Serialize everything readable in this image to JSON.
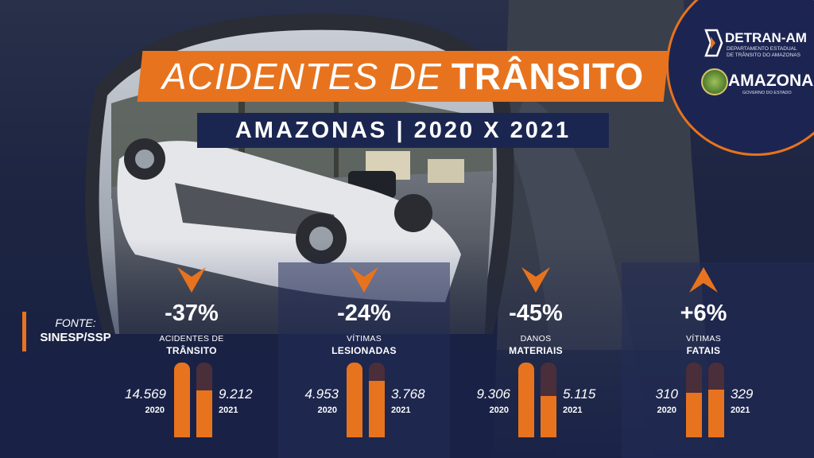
{
  "title": {
    "light": "ACIDENTES DE",
    "bold": "TRÂNSITO"
  },
  "subtitle": "AMAZONAS | 2020 X 2021",
  "logos": {
    "detran_name": "DETRAN-AM",
    "detran_desc_line1": "DEPARTAMENTO ESTADUAL",
    "detran_desc_line2": "DE TRÂNSITO DO AMAZONAS",
    "gov_name": "AMAZONAS",
    "gov_sub": "GOVERNO DO ESTADO"
  },
  "source": {
    "label": "FONTE:",
    "value": "SINESP/SSP"
  },
  "colors": {
    "accent": "#e8731e",
    "navy": "#1b2650",
    "track": "#4a2e3a"
  },
  "stats": [
    {
      "direction": "down",
      "percent": "-37%",
      "label_line1": "ACIDENTES DE",
      "label_line2": "TRÂNSITO",
      "value_2020": "14.569",
      "year_2020": "2020",
      "value_2021": "9.212",
      "year_2021": "2021",
      "level_2020": 1.0,
      "level_2021": 0.63
    },
    {
      "direction": "down",
      "percent": "-24%",
      "label_line1": "VÍTIMAS",
      "label_line2": "LESIONADAS",
      "value_2020": "4.953",
      "year_2020": "2020",
      "value_2021": "3.768",
      "year_2021": "2021",
      "level_2020": 1.0,
      "level_2021": 0.76
    },
    {
      "direction": "down",
      "percent": "-45%",
      "label_line1": "DANOS",
      "label_line2": "MATERIAIS",
      "value_2020": "9.306",
      "year_2020": "2020",
      "value_2021": "5.115",
      "year_2021": "2021",
      "level_2020": 1.0,
      "level_2021": 0.55
    },
    {
      "direction": "up",
      "percent": "+6%",
      "label_line1": "VÍTIMAS",
      "label_line2": "FATAIS",
      "value_2020": "310",
      "year_2020": "2020",
      "value_2021": "329",
      "year_2021": "2021",
      "level_2020": 0.6,
      "level_2021": 0.64
    }
  ]
}
